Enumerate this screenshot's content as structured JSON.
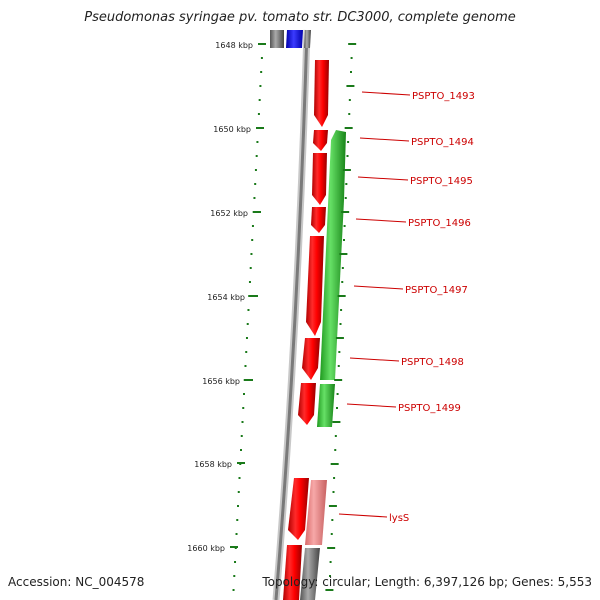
{
  "title": "Pseudomonas syringae pv. tomato str. DC3000, complete genome",
  "footer": {
    "accession_label": "Accession:",
    "accession": "NC_004578",
    "topology_label": "Topology:",
    "topology": "circular",
    "length_label": "Length:",
    "length": "6,397,126 bp",
    "genes_label": "Genes:",
    "genes": "5,553"
  },
  "ruler": {
    "labels": [
      "1648 kbp",
      "1650 kbp",
      "1652 kbp",
      "1654 kbp",
      "1656 kbp",
      "1658 kbp",
      "1660 kbp"
    ]
  },
  "genes": [
    {
      "name": "PSPTO_1493"
    },
    {
      "name": "PSPTO_1494"
    },
    {
      "name": "PSPTO_1495"
    },
    {
      "name": "PSPTO_1496"
    },
    {
      "name": "PSPTO_1497"
    },
    {
      "name": "PSPTO_1498"
    },
    {
      "name": "PSPTO_1499"
    },
    {
      "name": "lysS"
    }
  ],
  "colors": {
    "forward_cds": "#ff0000",
    "forward_cds_light": "#f08a8a",
    "reverse_cds": "#33cc33",
    "blue_feature": "#0000ff",
    "backbone": "#808080",
    "tick": "#1a7a1a",
    "label": "#cc0000"
  }
}
